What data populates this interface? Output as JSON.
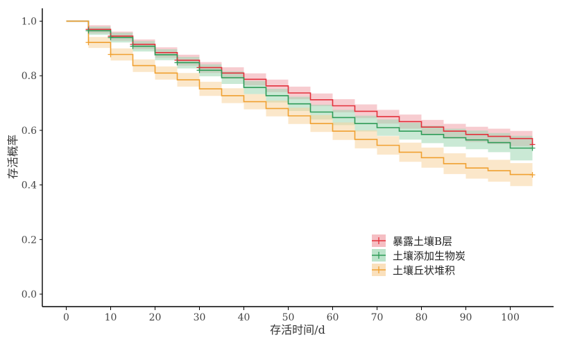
{
  "chart_data": {
    "type": "line",
    "subtype": "kaplan-meier-step",
    "title": "",
    "xlabel": "存活时间/d",
    "ylabel": "存活概率",
    "xlim": [
      -5,
      110
    ],
    "ylim": [
      0,
      1.05
    ],
    "xticks": [
      0,
      10,
      20,
      30,
      40,
      50,
      60,
      70,
      80,
      90,
      100
    ],
    "yticks": [
      0.0,
      0.2,
      0.4,
      0.6,
      0.8,
      1.0
    ],
    "ytick_labels": [
      "0.0",
      "0.2",
      "0.4",
      "0.6",
      "0.8",
      "1.0"
    ],
    "grid": false,
    "legend_position": "bottom-right",
    "series": [
      {
        "name": "暴露土壤B层",
        "color": "#E3303B",
        "fill": "#F1A3AA",
        "x": [
          0,
          5,
          10,
          15,
          20,
          25,
          30,
          35,
          40,
          45,
          50,
          55,
          60,
          65,
          70,
          75,
          80,
          85,
          90,
          95,
          100,
          105
        ],
        "y": [
          1.0,
          0.97,
          0.945,
          0.915,
          0.885,
          0.857,
          0.83,
          0.81,
          0.787,
          0.763,
          0.737,
          0.712,
          0.69,
          0.67,
          0.65,
          0.632,
          0.612,
          0.597,
          0.585,
          0.578,
          0.57,
          0.548
        ],
        "lower": [
          1.0,
          0.955,
          0.928,
          0.897,
          0.866,
          0.837,
          0.81,
          0.789,
          0.765,
          0.74,
          0.714,
          0.689,
          0.666,
          0.645,
          0.625,
          0.606,
          0.586,
          0.57,
          0.557,
          0.55,
          0.542,
          0.52
        ],
        "upper": [
          1.0,
          0.985,
          0.962,
          0.933,
          0.904,
          0.877,
          0.85,
          0.831,
          0.809,
          0.786,
          0.76,
          0.735,
          0.714,
          0.695,
          0.675,
          0.658,
          0.638,
          0.624,
          0.613,
          0.606,
          0.598,
          0.576
        ]
      },
      {
        "name": "土壤添加生物炭",
        "color": "#2E9B57",
        "fill": "#9ED7B3",
        "x": [
          0,
          5,
          10,
          15,
          20,
          25,
          30,
          35,
          40,
          45,
          50,
          55,
          60,
          65,
          70,
          75,
          80,
          85,
          90,
          95,
          100,
          105
        ],
        "y": [
          1.0,
          0.965,
          0.94,
          0.908,
          0.877,
          0.848,
          0.82,
          0.793,
          0.757,
          0.727,
          0.697,
          0.667,
          0.647,
          0.625,
          0.61,
          0.597,
          0.585,
          0.573,
          0.565,
          0.555,
          0.535,
          0.535
        ],
        "lower": [
          1.0,
          0.95,
          0.922,
          0.889,
          0.857,
          0.827,
          0.798,
          0.77,
          0.733,
          0.702,
          0.671,
          0.64,
          0.619,
          0.596,
          0.58,
          0.566,
          0.553,
          0.54,
          0.531,
          0.52,
          0.49,
          0.49
        ],
        "upper": [
          1.0,
          0.98,
          0.958,
          0.927,
          0.897,
          0.869,
          0.842,
          0.816,
          0.781,
          0.752,
          0.723,
          0.694,
          0.675,
          0.654,
          0.64,
          0.628,
          0.617,
          0.606,
          0.599,
          0.59,
          0.58,
          0.58
        ]
      },
      {
        "name": "土壤丘状堆积",
        "color": "#F0A030",
        "fill": "#F8D39F",
        "x": [
          0,
          5,
          10,
          15,
          20,
          25,
          30,
          35,
          40,
          45,
          50,
          55,
          60,
          65,
          70,
          75,
          80,
          85,
          90,
          95,
          100,
          105
        ],
        "y": [
          1.0,
          0.922,
          0.878,
          0.837,
          0.81,
          0.785,
          0.752,
          0.727,
          0.705,
          0.68,
          0.653,
          0.625,
          0.597,
          0.567,
          0.545,
          0.52,
          0.5,
          0.478,
          0.462,
          0.452,
          0.438,
          0.437
        ],
        "lower": [
          1.0,
          0.902,
          0.856,
          0.814,
          0.786,
          0.76,
          0.726,
          0.7,
          0.677,
          0.651,
          0.623,
          0.594,
          0.565,
          0.534,
          0.511,
          0.485,
          0.463,
          0.44,
          0.423,
          0.412,
          0.396,
          0.395
        ],
        "upper": [
          1.0,
          0.942,
          0.9,
          0.86,
          0.834,
          0.81,
          0.778,
          0.754,
          0.733,
          0.709,
          0.683,
          0.656,
          0.629,
          0.6,
          0.579,
          0.555,
          0.537,
          0.516,
          0.501,
          0.492,
          0.48,
          0.479
        ]
      }
    ],
    "censor_marks": [
      {
        "series": 0,
        "x": [
          5,
          10,
          15,
          25,
          30,
          105
        ]
      },
      {
        "series": 1,
        "x": [
          5,
          10,
          15,
          25,
          30,
          105
        ]
      },
      {
        "series": 2,
        "x": [
          5,
          10,
          105
        ]
      }
    ]
  }
}
